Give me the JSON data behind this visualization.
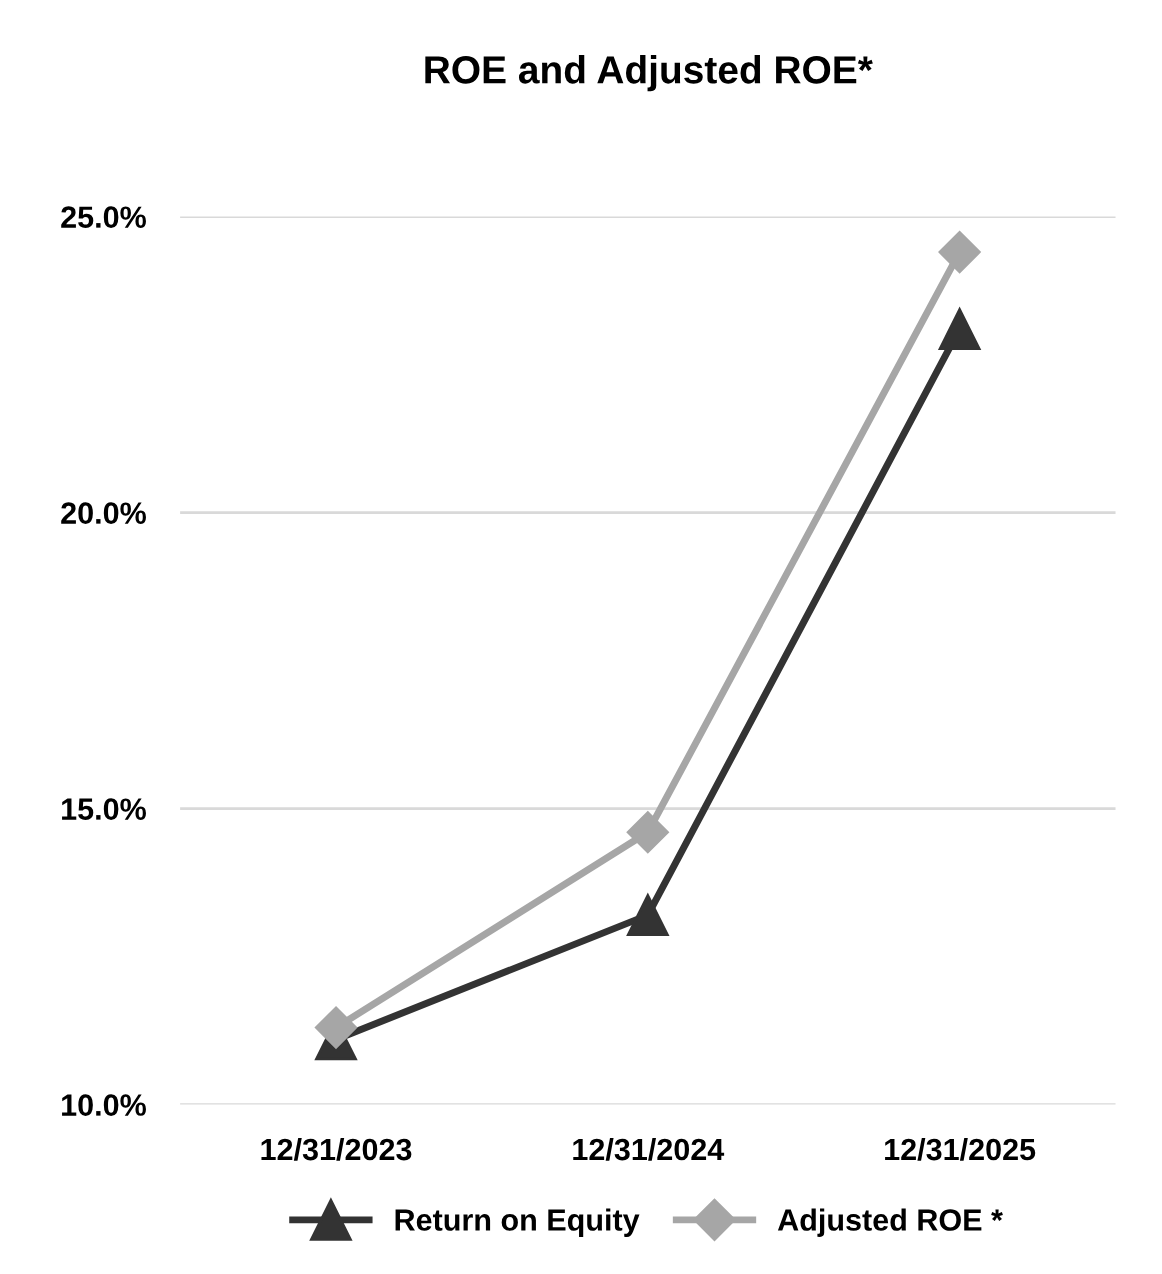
{
  "chart_data": {
    "type": "line",
    "title": "ROE and Adjusted ROE*",
    "categories": [
      "12/31/2023",
      "12/31/2024",
      "12/31/2025"
    ],
    "series": [
      {
        "name": "Return on Equity",
        "color": "#333333",
        "marker": "triangle",
        "values": [
          11.1,
          13.2,
          23.1
        ]
      },
      {
        "name": "Adjusted ROE *",
        "color": "#a6a6a6",
        "marker": "diamond",
        "values": [
          11.3,
          14.6,
          24.4
        ]
      }
    ],
    "ylim": [
      10,
      25
    ],
    "yticks": [
      {
        "value": 10,
        "label": "10.0%"
      },
      {
        "value": 15,
        "label": "15.0%"
      },
      {
        "value": 20,
        "label": "20.0%"
      },
      {
        "value": 25,
        "label": "25.0%"
      }
    ],
    "grid": "y",
    "legend": "bottom",
    "line_style": "solid"
  }
}
